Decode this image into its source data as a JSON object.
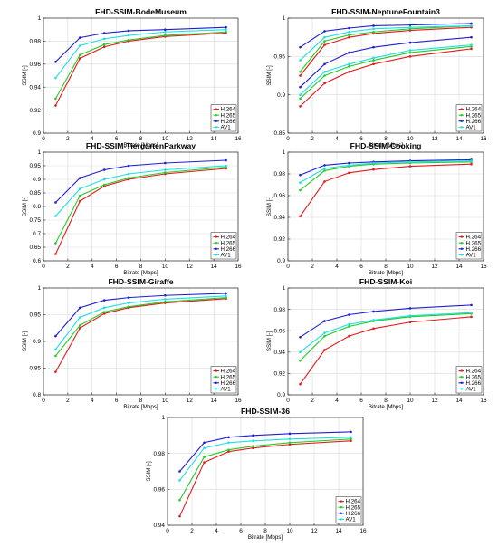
{
  "colors": {
    "H.264": "#e31a1c",
    "H.265": "#22cc22",
    "H.266": "#1f1fd0",
    "AV1": "#1ee0e0"
  },
  "chart_data": [
    {
      "type": "line",
      "title": "FHD-SSIM-BodeMuseum",
      "xlabel": "",
      "ylabel": "SSIM [-]",
      "xlim": [
        0,
        16
      ],
      "ylim": [
        0.9,
        1
      ],
      "xticks": [
        0,
        2,
        4,
        6,
        8,
        10,
        12,
        14,
        16
      ],
      "yticks": [
        0.9,
        0.92,
        0.94,
        0.96,
        0.98,
        1
      ],
      "ytick_labels": [
        "0.9",
        "0.92",
        "0.94",
        "0.96",
        "0.98",
        "1"
      ],
      "grid": true,
      "legend": "bottom-right",
      "x": [
        1,
        3,
        5,
        7,
        10,
        15
      ],
      "series": [
        {
          "name": "H.264",
          "values": [
            0.924,
            0.965,
            0.975,
            0.98,
            0.984,
            0.987
          ]
        },
        {
          "name": "H.265",
          "values": [
            0.93,
            0.968,
            0.977,
            0.981,
            0.985,
            0.988
          ]
        },
        {
          "name": "H.266",
          "values": [
            0.962,
            0.983,
            0.987,
            0.989,
            0.99,
            0.992
          ]
        },
        {
          "name": "AV1",
          "values": [
            0.948,
            0.976,
            0.982,
            0.985,
            0.988,
            0.99
          ]
        }
      ]
    },
    {
      "type": "line",
      "title": "FHD-SSIM-NeptuneFountain3",
      "xlabel": "",
      "ylabel": "SSIM [-]",
      "xlim": [
        0,
        16
      ],
      "ylim": [
        0.85,
        1
      ],
      "xticks": [
        0,
        2,
        4,
        6,
        8,
        10,
        12,
        14,
        16
      ],
      "yticks": [
        0.85,
        0.9,
        0.95,
        1
      ],
      "ytick_labels": [
        "0.85",
        "0.9",
        "0.95",
        "1"
      ],
      "grid": true,
      "legend": "bottom-right",
      "x": [
        1,
        3,
        5,
        7,
        10,
        15
      ],
      "series": [
        {
          "name": "H.264",
          "values": [
            0.885,
            0.915,
            0.93,
            0.94,
            0.95,
            0.96
          ]
        },
        {
          "name": "H.265",
          "values": [
            0.895,
            0.925,
            0.937,
            0.945,
            0.955,
            0.963
          ]
        },
        {
          "name": "H.266",
          "values": [
            0.91,
            0.94,
            0.955,
            0.962,
            0.968,
            0.975
          ]
        },
        {
          "name": "AV1",
          "values": [
            0.9,
            0.93,
            0.94,
            0.948,
            0.958,
            0.965
          ]
        },
        {
          "name": "H.264",
          "values": [
            0.925,
            0.965,
            0.975,
            0.98,
            0.984,
            0.988
          ]
        },
        {
          "name": "H.265",
          "values": [
            0.93,
            0.97,
            0.978,
            0.982,
            0.986,
            0.99
          ]
        },
        {
          "name": "H.266",
          "values": [
            0.962,
            0.983,
            0.987,
            0.99,
            0.991,
            0.993
          ]
        },
        {
          "name": "AV1",
          "values": [
            0.945,
            0.975,
            0.982,
            0.986,
            0.988,
            0.99
          ]
        }
      ]
    },
    {
      "type": "line",
      "title": "FHD-SSIM-TiergartenParkway",
      "xlabel": "",
      "ylabel": "SSIM [-]",
      "xlim": [
        0,
        16
      ],
      "ylim": [
        0.6,
        1
      ],
      "xticks": [
        0,
        2,
        4,
        6,
        8,
        10,
        12,
        14,
        16
      ],
      "yticks": [
        0.6,
        0.65,
        0.7,
        0.75,
        0.8,
        0.85,
        0.9,
        0.95,
        1
      ],
      "ytick_labels": [
        "0.6",
        "0.65",
        "0.7",
        "0.75",
        "0.8",
        "0.85",
        "0.9",
        "0.95",
        "1"
      ],
      "grid": true,
      "legend": "bottom-right",
      "x": [
        1,
        3,
        5,
        7,
        10,
        15
      ],
      "series": [
        {
          "name": "H.264",
          "values": [
            0.625,
            0.82,
            0.875,
            0.9,
            0.92,
            0.94
          ]
        },
        {
          "name": "H.265",
          "values": [
            0.665,
            0.84,
            0.88,
            0.905,
            0.925,
            0.945
          ]
        },
        {
          "name": "H.266",
          "values": [
            0.815,
            0.905,
            0.935,
            0.95,
            0.96,
            0.97
          ]
        },
        {
          "name": "AV1",
          "values": [
            0.765,
            0.865,
            0.9,
            0.92,
            0.935,
            0.95
          ]
        }
      ]
    },
    {
      "type": "line",
      "title": "FHD-SSIM-Cooking",
      "xlabel": "",
      "ylabel": "SSIM [-]",
      "xlim": [
        0,
        16
      ],
      "ylim": [
        0.9,
        1
      ],
      "xticks": [
        0,
        2,
        4,
        6,
        8,
        10,
        12,
        14,
        16
      ],
      "yticks": [
        0.9,
        0.92,
        0.94,
        0.96,
        0.98,
        1
      ],
      "ytick_labels": [
        "0.9",
        "0.92",
        "0.94",
        "0.96",
        "0.98",
        "1"
      ],
      "grid": true,
      "legend": "bottom-right",
      "x": [
        1,
        3,
        5,
        7,
        10,
        15
      ],
      "series": [
        {
          "name": "H.264",
          "values": [
            0.941,
            0.973,
            0.981,
            0.984,
            0.987,
            0.989
          ]
        },
        {
          "name": "H.265",
          "values": [
            0.965,
            0.983,
            0.987,
            0.989,
            0.99,
            0.991
          ]
        },
        {
          "name": "H.266",
          "values": [
            0.979,
            0.988,
            0.99,
            0.991,
            0.992,
            0.993
          ]
        },
        {
          "name": "AV1",
          "values": [
            0.972,
            0.985,
            0.988,
            0.99,
            0.991,
            0.992
          ]
        }
      ]
    },
    {
      "type": "line",
      "title": "FHD-SSIM-Giraffe",
      "xlabel": "",
      "ylabel": "SSIM [-]",
      "xlim": [
        0,
        16
      ],
      "ylim": [
        0.8,
        1
      ],
      "xticks": [
        0,
        2,
        4,
        6,
        8,
        10,
        12,
        14,
        16
      ],
      "yticks": [
        0.8,
        0.85,
        0.9,
        0.95,
        1
      ],
      "ytick_labels": [
        "0.8",
        "0.85",
        "0.9",
        "0.95",
        "1"
      ],
      "grid": true,
      "legend": "bottom-right",
      "x": [
        1,
        3,
        5,
        7,
        10,
        15
      ],
      "series": [
        {
          "name": "H.264",
          "values": [
            0.843,
            0.925,
            0.952,
            0.963,
            0.972,
            0.98
          ]
        },
        {
          "name": "H.265",
          "values": [
            0.873,
            0.93,
            0.955,
            0.965,
            0.974,
            0.982
          ]
        },
        {
          "name": "H.266",
          "values": [
            0.91,
            0.963,
            0.977,
            0.982,
            0.986,
            0.99
          ]
        },
        {
          "name": "AV1",
          "values": [
            0.885,
            0.945,
            0.963,
            0.972,
            0.979,
            0.985
          ]
        }
      ]
    },
    {
      "type": "line",
      "title": "FHD-SSIM-Koi",
      "xlabel": "",
      "ylabel": "SSIM [-]",
      "xlim": [
        0,
        16
      ],
      "ylim": [
        0.9,
        1
      ],
      "xticks": [
        0,
        2,
        4,
        6,
        8,
        10,
        12,
        14,
        16
      ],
      "yticks": [
        0.9,
        0.92,
        0.94,
        0.96,
        0.98,
        1
      ],
      "ytick_labels": [
        "0.9",
        "0.92",
        "0.94",
        "0.96",
        "0.98",
        "1"
      ],
      "grid": true,
      "legend": "bottom-right",
      "x": [
        1,
        3,
        5,
        7,
        10,
        15
      ],
      "series": [
        {
          "name": "H.264",
          "values": [
            0.91,
            0.942,
            0.955,
            0.962,
            0.968,
            0.973
          ]
        },
        {
          "name": "H.265",
          "values": [
            0.932,
            0.955,
            0.964,
            0.969,
            0.973,
            0.976
          ]
        },
        {
          "name": "H.266",
          "values": [
            0.954,
            0.969,
            0.975,
            0.978,
            0.981,
            0.984
          ]
        },
        {
          "name": "AV1",
          "values": [
            0.94,
            0.958,
            0.966,
            0.97,
            0.974,
            0.977
          ]
        }
      ]
    },
    {
      "type": "line",
      "title": "FHD-SSIM-36",
      "xlabel": "Bitrate [Mbps]",
      "ylabel": "SSIM [-]",
      "xlim": [
        0,
        16
      ],
      "ylim": [
        0.94,
        1
      ],
      "xticks": [
        0,
        2,
        4,
        6,
        8,
        10,
        12,
        14,
        16
      ],
      "yticks": [
        0.94,
        0.96,
        0.98,
        1
      ],
      "ytick_labels": [
        "0.94",
        "0.96",
        "0.98",
        "1"
      ],
      "grid": true,
      "legend": "bottom-right",
      "x": [
        1,
        3,
        5,
        7,
        10,
        15
      ],
      "series": [
        {
          "name": "H.264",
          "values": [
            0.945,
            0.975,
            0.981,
            0.983,
            0.985,
            0.987
          ]
        },
        {
          "name": "H.265",
          "values": [
            0.954,
            0.978,
            0.982,
            0.984,
            0.986,
            0.988
          ]
        },
        {
          "name": "H.266",
          "values": [
            0.97,
            0.986,
            0.989,
            0.99,
            0.991,
            0.992
          ]
        },
        {
          "name": "AV1",
          "values": [
            0.965,
            0.983,
            0.986,
            0.987,
            0.988,
            0.989
          ]
        }
      ]
    }
  ],
  "xlabels": [
    "Bitrate [Mbps]",
    "Bitrate [Mbps]",
    "Bitrate [Mbps]",
    "Bitrate [Mbps]",
    "Bitrate [Mbps]",
    "Bitrate [Mbps]"
  ]
}
